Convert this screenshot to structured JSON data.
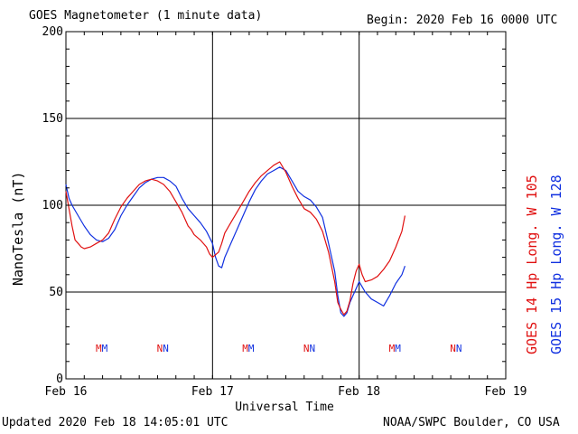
{
  "header": {
    "title": "GOES Magnetometer (1 minute data)",
    "begin": "Begin:  2020 Feb 16 0000 UTC"
  },
  "footer": {
    "updated": "Updated 2020 Feb 18 14:05:01 UTC",
    "credit": "NOAA/SWPC Boulder, CO USA"
  },
  "chart_data": {
    "type": "line",
    "title": "GOES Magnetometer (1 minute data)",
    "xlabel": "Universal Time",
    "ylabel": "NanoTesla (nT)",
    "x_unit": "hours since 2020 Feb 16 0000 UTC",
    "xlim": [
      0,
      72
    ],
    "ylim": [
      0,
      200
    ],
    "x_ticks": [
      {
        "x": 0,
        "label": "Feb 16"
      },
      {
        "x": 24,
        "label": "Feb 17"
      },
      {
        "x": 48,
        "label": "Feb 18"
      },
      {
        "x": 72,
        "label": "Feb 19"
      }
    ],
    "y_ticks": [
      0,
      50,
      100,
      150,
      200
    ],
    "grid": true,
    "colors": {
      "goes14": "#e01010",
      "goes15": "#1030e0",
      "grid": "#000000"
    },
    "series": [
      {
        "name": "GOES 14 Hp  Long. W 105",
        "color": "#e01010",
        "points": [
          [
            0,
            108
          ],
          [
            0.5,
            98
          ],
          [
            1,
            88
          ],
          [
            1.5,
            80
          ],
          [
            2,
            78
          ],
          [
            2.5,
            76
          ],
          [
            3,
            75
          ],
          [
            4,
            76
          ],
          [
            5,
            78
          ],
          [
            6,
            80
          ],
          [
            7,
            84
          ],
          [
            8,
            92
          ],
          [
            9,
            99
          ],
          [
            10,
            104
          ],
          [
            11,
            108
          ],
          [
            12,
            112
          ],
          [
            13,
            114
          ],
          [
            14,
            115
          ],
          [
            15,
            114
          ],
          [
            16,
            112
          ],
          [
            17,
            108
          ],
          [
            18,
            102
          ],
          [
            19,
            96
          ],
          [
            20,
            88
          ],
          [
            20.5,
            86
          ],
          [
            21,
            83
          ],
          [
            22,
            80
          ],
          [
            23,
            76
          ],
          [
            23.5,
            72
          ],
          [
            24,
            70
          ],
          [
            25,
            73
          ],
          [
            25.5,
            78
          ],
          [
            26,
            84
          ],
          [
            27,
            90
          ],
          [
            28,
            96
          ],
          [
            29,
            102
          ],
          [
            30,
            108
          ],
          [
            31,
            113
          ],
          [
            32,
            117
          ],
          [
            33,
            120
          ],
          [
            34,
            123
          ],
          [
            35,
            125
          ],
          [
            36,
            119
          ],
          [
            37,
            111
          ],
          [
            38,
            104
          ],
          [
            39,
            98
          ],
          [
            40,
            96
          ],
          [
            41,
            92
          ],
          [
            42,
            85
          ],
          [
            43,
            73
          ],
          [
            44,
            56
          ],
          [
            44.5,
            44
          ],
          [
            45,
            40
          ],
          [
            45.5,
            37
          ],
          [
            46,
            39
          ],
          [
            46.5,
            45
          ],
          [
            47,
            55
          ],
          [
            47.5,
            62
          ],
          [
            48,
            66
          ],
          [
            48.5,
            60
          ],
          [
            49,
            56
          ],
          [
            50,
            57
          ],
          [
            51,
            59
          ],
          [
            52,
            63
          ],
          [
            53,
            68
          ],
          [
            54,
            76
          ],
          [
            55,
            85
          ],
          [
            55.5,
            94
          ]
        ]
      },
      {
        "name": "GOES 15 Hp  Long. W 128",
        "color": "#1030e0",
        "points": [
          [
            0,
            112
          ],
          [
            0.5,
            104
          ],
          [
            1,
            100
          ],
          [
            2,
            94
          ],
          [
            3,
            88
          ],
          [
            4,
            83
          ],
          [
            5,
            80
          ],
          [
            6,
            79
          ],
          [
            7,
            81
          ],
          [
            8,
            86
          ],
          [
            9,
            94
          ],
          [
            10,
            100
          ],
          [
            11,
            105
          ],
          [
            12,
            110
          ],
          [
            13,
            113
          ],
          [
            14,
            115
          ],
          [
            15,
            116
          ],
          [
            16,
            116
          ],
          [
            17,
            114
          ],
          [
            18,
            111
          ],
          [
            19,
            104
          ],
          [
            20,
            98
          ],
          [
            21,
            94
          ],
          [
            22,
            90
          ],
          [
            23,
            85
          ],
          [
            24,
            78
          ],
          [
            24.5,
            70
          ],
          [
            25,
            65
          ],
          [
            25.5,
            64
          ],
          [
            26,
            70
          ],
          [
            27,
            78
          ],
          [
            28,
            86
          ],
          [
            29,
            94
          ],
          [
            30,
            102
          ],
          [
            31,
            109
          ],
          [
            32,
            114
          ],
          [
            33,
            118
          ],
          [
            34,
            120
          ],
          [
            35,
            122
          ],
          [
            36,
            120
          ],
          [
            37,
            114
          ],
          [
            38,
            108
          ],
          [
            39,
            105
          ],
          [
            40,
            103
          ],
          [
            41,
            99
          ],
          [
            42,
            93
          ],
          [
            43,
            78
          ],
          [
            44,
            62
          ],
          [
            44.5,
            48
          ],
          [
            45,
            38
          ],
          [
            45.5,
            36
          ],
          [
            46,
            38
          ],
          [
            46.5,
            44
          ],
          [
            47,
            48
          ],
          [
            47.5,
            52
          ],
          [
            48,
            56
          ],
          [
            48.5,
            53
          ],
          [
            49,
            50
          ],
          [
            50,
            46
          ],
          [
            51,
            44
          ],
          [
            52,
            42
          ],
          [
            53,
            48
          ],
          [
            54,
            55
          ],
          [
            55,
            60
          ],
          [
            55.5,
            65
          ]
        ]
      }
    ],
    "markers": [
      {
        "x": 6,
        "label": "MM"
      },
      {
        "x": 16,
        "label": "NN"
      },
      {
        "x": 30,
        "label": "MM"
      },
      {
        "x": 40,
        "label": "NN"
      },
      {
        "x": 54,
        "label": "MM"
      },
      {
        "x": 64,
        "label": "NN"
      }
    ]
  }
}
